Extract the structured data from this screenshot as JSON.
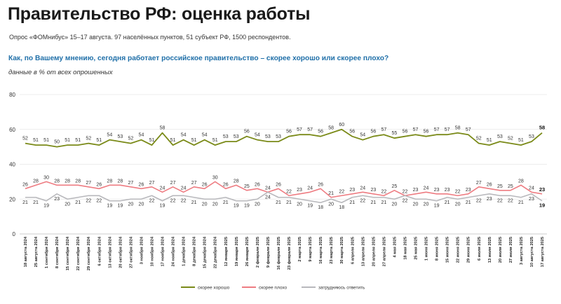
{
  "header": {
    "title": "Правительство РФ: оценка работы",
    "subtitle": "Опрос «ФОМнибус» 15–17 августа. 97 населённых пунктов, 51 субъект РФ, 1500 респондентов.",
    "question": "Как, по Вашему мнению, сегодня работает российское правительство – скорее хорошо или скорее плохо?",
    "note": "данные в % от всех опрошенных"
  },
  "chart_data": {
    "type": "line",
    "ylim": [
      0,
      80
    ],
    "yticks": [
      0,
      20,
      40,
      60,
      80
    ],
    "grid": true,
    "legend_position": "bottom",
    "x": [
      "18 августа 2024",
      "25 августа 2024",
      "1 сентября 2024",
      "8 сентября 2024",
      "15 сентября 2024",
      "22 сентября 2024",
      "29 сентября 2024",
      "6 октября 2024",
      "13 октября 2024",
      "20 октября 2024",
      "27 октября 2024",
      "3 ноября 2024",
      "10 ноября 2024",
      "17 ноября 2024",
      "24 ноября 2024",
      "1 декабря 2024",
      "8 декабря 2024",
      "15 декабря 2024",
      "22 декабря 2024",
      "12 января 2025",
      "19 января 2025",
      "26 января 2025",
      "2 февраля 2025",
      "9 февраля 2025",
      "16 февраля 2025",
      "23 февраля 2025",
      "2 марта 2025",
      "9 марта 2025",
      "16 марта 2025",
      "23 марта 2025",
      "30 марта 2025",
      "6 апреля 2025",
      "13 апреля 2025",
      "20 апреля 2025",
      "27 апреля 2025",
      "4 мая 2025",
      "18 мая 2025",
      "25 мая 2025",
      "1 июня 2025",
      "8 июня 2025",
      "15 июня 2025",
      "22 июня 2025",
      "29 июня 2025",
      "6 июля 2025",
      "13 июля 2025",
      "20 июля 2025",
      "27 июля 2025",
      "3 августа 2025",
      "10 августа 2025",
      "17 августа 2025"
    ],
    "series": [
      {
        "name": "скорее хорошо",
        "color": "#7a8a18",
        "values": [
          52,
          51,
          51,
          50,
          51,
          51,
          52,
          51,
          54,
          53,
          52,
          54,
          51,
          58,
          51,
          54,
          51,
          54,
          51,
          53,
          53,
          56,
          54,
          53,
          53,
          56,
          57,
          57,
          56,
          58,
          60,
          56,
          54,
          56,
          57,
          55,
          56,
          57,
          56,
          57,
          57,
          58,
          57,
          52,
          51,
          53,
          52,
          51,
          53,
          58
        ]
      },
      {
        "name": "скорее плохо",
        "color": "#ee7c82",
        "values": [
          26,
          28,
          30,
          28,
          28,
          28,
          27,
          26,
          28,
          28,
          27,
          26,
          27,
          24,
          27,
          24,
          27,
          26,
          30,
          26,
          28,
          25,
          26,
          24,
          26,
          22,
          23,
          24,
          26,
          21,
          22,
          23,
          24,
          23,
          22,
          25,
          22,
          23,
          24,
          23,
          23,
          22,
          23,
          27,
          26,
          25,
          25,
          28,
          24,
          23
        ]
      },
      {
        "name": "затрудняюсь ответить",
        "color": "#b8b8bc",
        "values": [
          21,
          21,
          19,
          23,
          20,
          21,
          22,
          22,
          19,
          19,
          20,
          20,
          22,
          19,
          22,
          22,
          21,
          20,
          20,
          21,
          19,
          19,
          20,
          24,
          21,
          21,
          20,
          19,
          18,
          20,
          18,
          21,
          22,
          21,
          21,
          20,
          22,
          20,
          20,
          19,
          21,
          20,
          21,
          22,
          23,
          22,
          22,
          21,
          23,
          19
        ]
      }
    ]
  }
}
